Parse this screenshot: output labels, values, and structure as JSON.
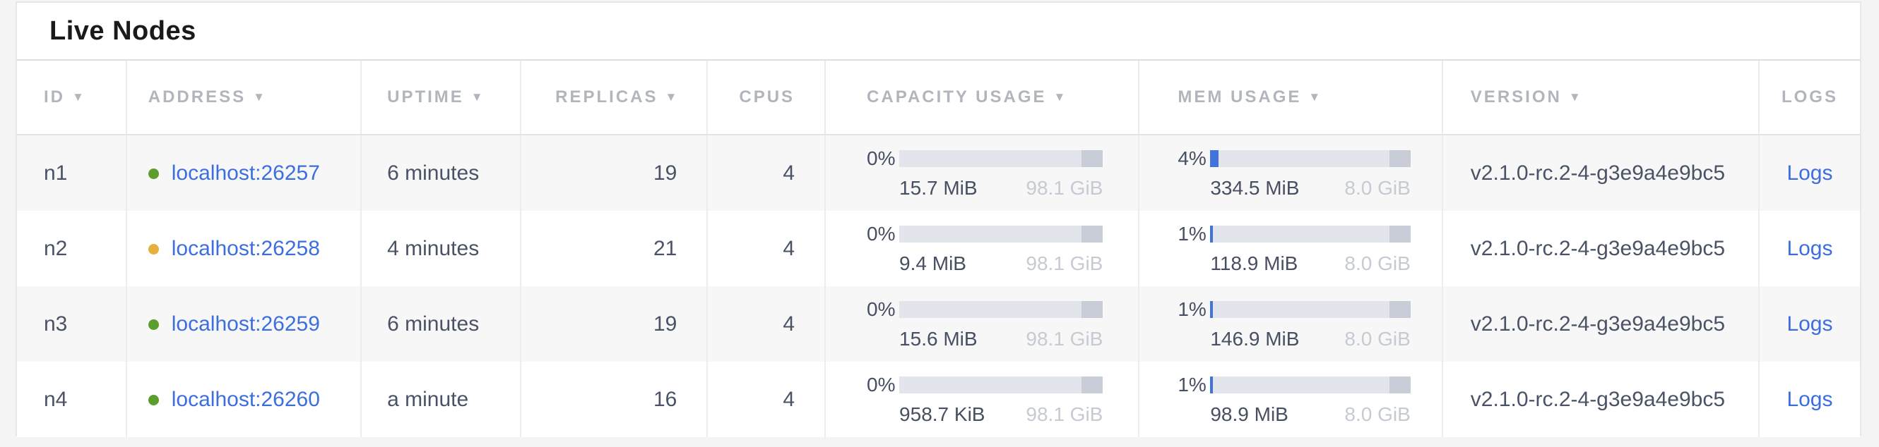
{
  "title": "Live Nodes",
  "colors": {
    "link_blue": "#3c6ede",
    "status_healthy_green": "#5c9e2e",
    "status_suspect_yellow": "#e3b13c",
    "bar_fill_blue": "#4173dd",
    "bar_track": "#e3e5ed"
  },
  "table": {
    "sort_indicator": "▼",
    "columns": [
      {
        "key": "id",
        "label": "ID",
        "sortable": true
      },
      {
        "key": "address",
        "label": "Address",
        "sortable": true
      },
      {
        "key": "uptime",
        "label": "Uptime",
        "sortable": true
      },
      {
        "key": "replicas",
        "label": "Replicas",
        "sortable": true
      },
      {
        "key": "cpus",
        "label": "CPUs",
        "sortable": false
      },
      {
        "key": "capacity",
        "label": "Capacity Usage",
        "sortable": true
      },
      {
        "key": "mem",
        "label": "Mem Usage",
        "sortable": true
      },
      {
        "key": "version",
        "label": "Version",
        "sortable": true
      },
      {
        "key": "logs",
        "label": "Logs",
        "sortable": false
      }
    ],
    "rows": [
      {
        "id": "n1",
        "status": "healthy",
        "dot_color": "#5c9e2e",
        "address": "localhost:26257",
        "uptime": "6 minutes",
        "replicas": "19",
        "cpus": "4",
        "capacity": {
          "pct_label": "0%",
          "pct": 0,
          "used": "15.7 MiB",
          "total": "98.1 GiB"
        },
        "memory": {
          "pct_label": "4%",
          "pct": 4,
          "used": "334.5 MiB",
          "total": "8.0 GiB"
        },
        "version": "v2.1.0-rc.2-4-g3e9a4e9bc5",
        "logs_label": "Logs"
      },
      {
        "id": "n2",
        "status": "suspect",
        "dot_color": "#e3b13c",
        "address": "localhost:26258",
        "uptime": "4 minutes",
        "replicas": "21",
        "cpus": "4",
        "capacity": {
          "pct_label": "0%",
          "pct": 0,
          "used": "9.4 MiB",
          "total": "98.1 GiB"
        },
        "memory": {
          "pct_label": "1%",
          "pct": 1.4,
          "used": "118.9 MiB",
          "total": "8.0 GiB"
        },
        "version": "v2.1.0-rc.2-4-g3e9a4e9bc5",
        "logs_label": "Logs"
      },
      {
        "id": "n3",
        "status": "healthy",
        "dot_color": "#5c9e2e",
        "address": "localhost:26259",
        "uptime": "6 minutes",
        "replicas": "19",
        "cpus": "4",
        "capacity": {
          "pct_label": "0%",
          "pct": 0,
          "used": "15.6 MiB",
          "total": "98.1 GiB"
        },
        "memory": {
          "pct_label": "1%",
          "pct": 1.4,
          "used": "146.9 MiB",
          "total": "8.0 GiB"
        },
        "version": "v2.1.0-rc.2-4-g3e9a4e9bc5",
        "logs_label": "Logs"
      },
      {
        "id": "n4",
        "status": "healthy",
        "dot_color": "#5c9e2e",
        "address": "localhost:26260",
        "uptime": "a minute",
        "replicas": "16",
        "cpus": "4",
        "capacity": {
          "pct_label": "0%",
          "pct": 0,
          "used": "958.7 KiB",
          "total": "98.1 GiB"
        },
        "memory": {
          "pct_label": "1%",
          "pct": 1.4,
          "used": "98.9 MiB",
          "total": "8.0 GiB"
        },
        "version": "v2.1.0-rc.2-4-g3e9a4e9bc5",
        "logs_label": "Logs"
      }
    ]
  }
}
